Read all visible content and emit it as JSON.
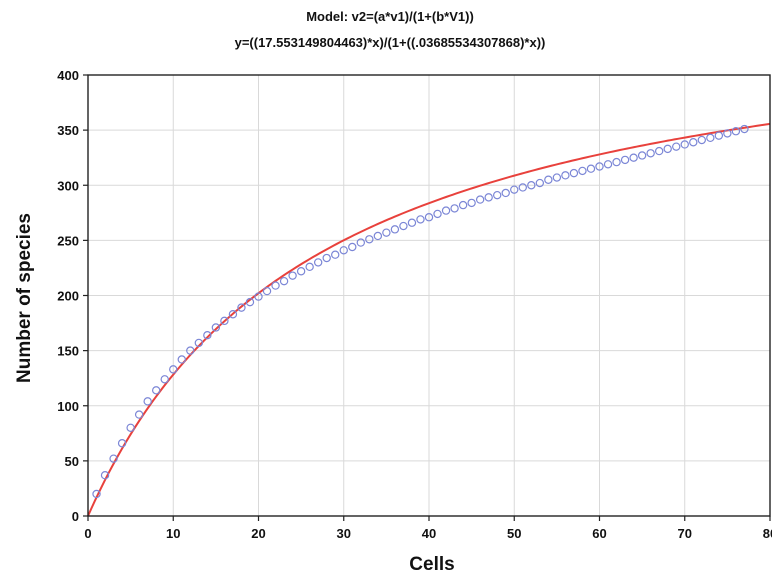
{
  "chart_data": {
    "type": "scatter",
    "title": "Model: v2=(a*v1)/(1+(b*V1))",
    "subtitle": "y=((17.553149804463)*x)/(1+((.03685534307868)*x))",
    "xlabel": "Cells",
    "ylabel": "Number of species",
    "xlim": [
      0,
      80
    ],
    "ylim": [
      0,
      400
    ],
    "xticks": [
      0,
      10,
      20,
      30,
      40,
      50,
      60,
      70,
      80
    ],
    "yticks": [
      0,
      50,
      100,
      150,
      200,
      250,
      300,
      350,
      400
    ],
    "grid": true,
    "model": {
      "a": 17.553149804463,
      "b": 0.03685534307868,
      "color": "#e8413c"
    },
    "series": [
      {
        "marker": "circle",
        "color": "#7b86d6",
        "x": [
          1,
          2,
          3,
          4,
          5,
          6,
          7,
          8,
          9,
          10,
          11,
          12,
          13,
          14,
          15,
          16,
          17,
          18,
          19,
          20,
          21,
          22,
          23,
          24,
          25,
          26,
          27,
          28,
          29,
          30,
          31,
          32,
          33,
          34,
          35,
          36,
          37,
          38,
          39,
          40,
          41,
          42,
          43,
          44,
          45,
          46,
          47,
          48,
          49,
          50,
          51,
          52,
          53,
          54,
          55,
          56,
          57,
          58,
          59,
          60,
          61,
          62,
          63,
          64,
          65,
          66,
          67,
          68,
          69,
          70,
          71,
          72,
          73,
          74,
          75,
          76,
          77
        ],
        "y": [
          20,
          37,
          52,
          66,
          80,
          92,
          104,
          114,
          124,
          133,
          142,
          150,
          157,
          164,
          171,
          177,
          183,
          189,
          194,
          199,
          204,
          209,
          213,
          218,
          222,
          226,
          230,
          234,
          237,
          241,
          244,
          248,
          251,
          254,
          257,
          260,
          263,
          266,
          269,
          271,
          274,
          277,
          279,
          282,
          284,
          287,
          289,
          291,
          293,
          296,
          298,
          300,
          302,
          305,
          307,
          309,
          311,
          313,
          315,
          317,
          319,
          321,
          323,
          325,
          327,
          329,
          331,
          333,
          335,
          337,
          339,
          341,
          343,
          345,
          347,
          349,
          351
        ]
      }
    ]
  }
}
